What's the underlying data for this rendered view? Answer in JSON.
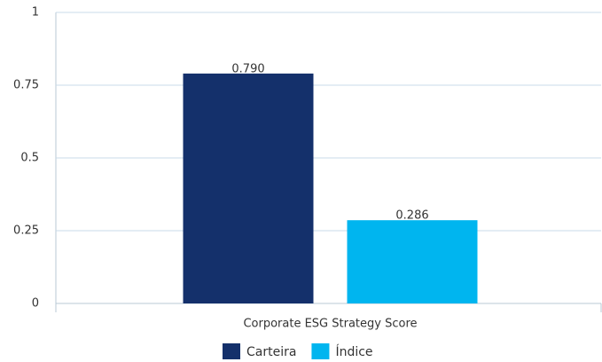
{
  "chart_data": {
    "type": "bar",
    "categories": [
      "Corporate ESG Strategy Score"
    ],
    "series": [
      {
        "name": "Carteira",
        "color": "#14306b",
        "values": [
          0.79
        ],
        "value_labels": [
          "0.790"
        ]
      },
      {
        "name": "Índice",
        "color": "#00b5ef",
        "values": [
          0.286
        ]
      }
    ],
    "ylim": [
      0,
      1
    ],
    "yticks": [
      0,
      0.25,
      0.5,
      0.75,
      1
    ],
    "grid": true,
    "legend": "bottom"
  }
}
